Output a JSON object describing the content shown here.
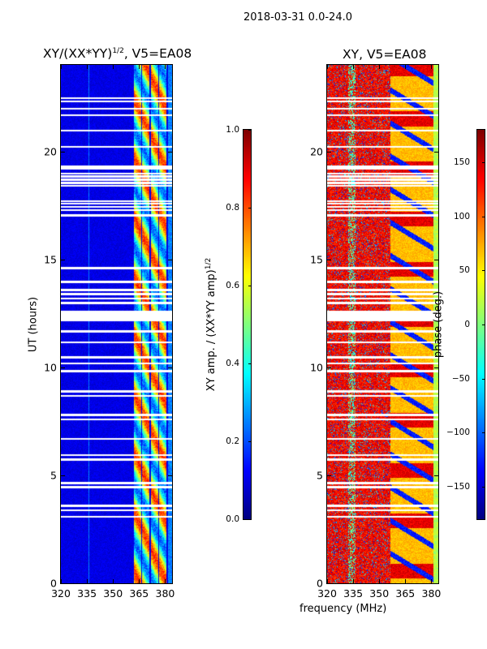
{
  "chart_data": {
    "type": "heatmap",
    "suptitle": "2018-03-31 0.0-24.0",
    "shared_xlabel": "frequency (MHz)",
    "flagged_hours": [
      22.48,
      22.33,
      21.99,
      21.69,
      20.98,
      20.23,
      19.32,
      19.22,
      18.99,
      18.85,
      18.7,
      18.55,
      18.42,
      17.71,
      17.6,
      17.45,
      17.3,
      17.04,
      14.6,
      13.96,
      13.6,
      13.4,
      13.2,
      13.0,
      12.6,
      12.5,
      12.4,
      12.3,
      12.2,
      11.67,
      11.18,
      10.47,
      10.2,
      9.83,
      8.9,
      8.7,
      7.8,
      7.6,
      6.7,
      5.95,
      5.75,
      4.65,
      4.47,
      3.6,
      3.4,
      3.1
    ],
    "panels": [
      {
        "title_main": "XY/(XX*YY)",
        "title_sup": "1/2",
        "title_rest": ", V5=EA08",
        "ylabel": "UT (hours)",
        "xlim": [
          320,
          384
        ],
        "ylim": [
          0,
          24
        ],
        "xticks": [
          320,
          335,
          350,
          365,
          380
        ],
        "yticks": [
          0,
          5,
          10,
          15,
          20
        ],
        "colorbar": {
          "label_main": "XY amp. / (XX*YY amp)",
          "label_sup": "1/2",
          "range": [
            0.0,
            1.0
          ],
          "ticks": [
            "0.0",
            "0.2",
            "0.4",
            "0.6",
            "0.8",
            "1.0"
          ],
          "colormap": "jet"
        }
      },
      {
        "title_main": "XY, V5=EA08",
        "ylabel": "",
        "xlim": [
          320,
          384
        ],
        "ylim": [
          0,
          24
        ],
        "xticks": [
          320,
          335,
          350,
          365,
          380
        ],
        "yticks": [
          0,
          5,
          10,
          15,
          20
        ],
        "colorbar": {
          "label_main": "phase (deg.)",
          "range": [
            -180,
            180
          ],
          "ticks": [
            "-150",
            "-100",
            "-50",
            "0",
            "50",
            "100",
            "150"
          ],
          "colormap": "jet"
        }
      }
    ]
  }
}
